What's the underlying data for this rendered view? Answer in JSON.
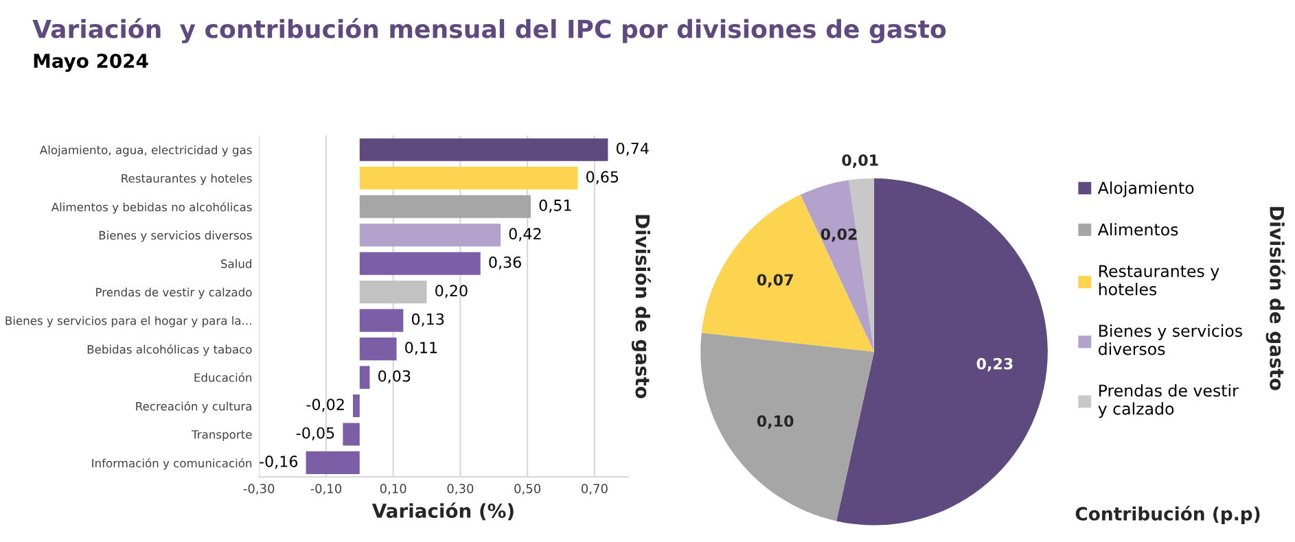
{
  "chart_data": [
    {
      "type": "bar",
      "orientation": "horizontal",
      "title": "Variación  y contribución mensual del IPC por divisiones de gasto",
      "subtitle": "Mayo 2024",
      "xlabel": "Variación (%)",
      "ylabel": "División de gasto",
      "categories": [
        "Alojamiento, agua, electricidad y gas",
        "Restaurantes y hoteles",
        "Alimentos y bebidas no alcohólicas",
        "Bienes y servicios diversos",
        "Salud",
        "Prendas de vestir y calzado",
        "Bienes y servicios para el hogar y para la...",
        "Bebidas alcohólicas y tabaco",
        "Educación",
        "Recreación y cultura",
        "Transporte",
        "Información y comunicación"
      ],
      "values": [
        0.74,
        0.65,
        0.51,
        0.42,
        0.36,
        0.2,
        0.13,
        0.11,
        0.03,
        -0.02,
        -0.05,
        -0.16
      ],
      "value_labels": [
        "0,74",
        "0,65",
        "0,51",
        "0,42",
        "0,36",
        "0,20",
        "0,13",
        "0,11",
        "0,03",
        "-0,02",
        "-0,05",
        "-0,16"
      ],
      "colors": [
        "#5e4a7e",
        "#fcd44f",
        "#a6a6a6",
        "#b3a3cc",
        "#7b5ea6",
        "#c2c2c2",
        "#7b5ea6",
        "#7b5ea6",
        "#7b5ea6",
        "#7b5ea6",
        "#7b5ea6",
        "#7b5ea6"
      ],
      "xlim": [
        -0.3,
        0.8
      ],
      "xticks": [
        {
          "value": -0.3,
          "label": "-0,30"
        },
        {
          "value": -0.1,
          "label": "-0,10"
        },
        {
          "value": 0.1,
          "label": "0,10"
        },
        {
          "value": 0.3,
          "label": "0,30"
        },
        {
          "value": 0.5,
          "label": "0,50"
        },
        {
          "value": 0.7,
          "label": "0,70"
        }
      ],
      "grid": "x"
    },
    {
      "type": "pie",
      "xlabel": "Contribución (p.p)",
      "ylabel": "División de gasto",
      "categories": [
        "Alojamiento",
        "Alimentos",
        "Restaurantes y hoteles",
        "Bienes y servicios diversos",
        "Prendas de vestir y calzado"
      ],
      "values": [
        0.23,
        0.1,
        0.07,
        0.02,
        0.01
      ],
      "value_labels": [
        "0,23",
        "0,10",
        "0,07",
        "0,02",
        "0,01"
      ],
      "colors": [
        "#5e4a7e",
        "#a6a6a6",
        "#fcd44f",
        "#b3a3cc",
        "#c8c8c8"
      ],
      "legend": "right"
    }
  ]
}
